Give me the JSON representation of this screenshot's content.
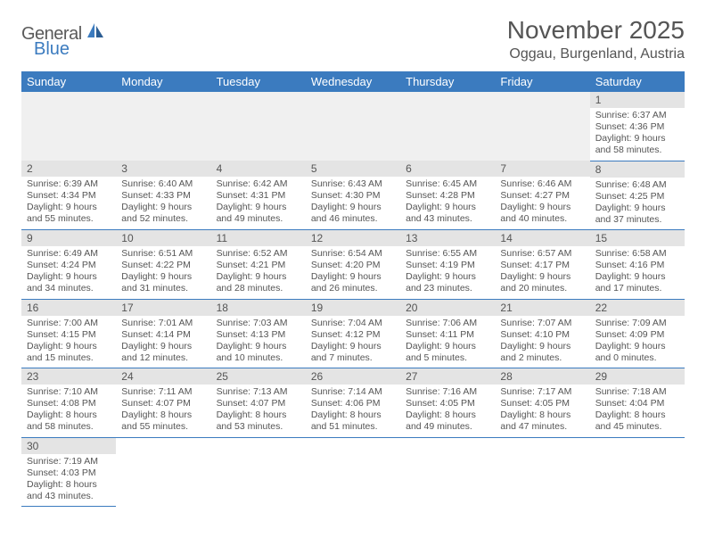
{
  "logo": {
    "text1": "General",
    "text2": "Blue"
  },
  "title": "November 2025",
  "location": "Oggau, Burgenland, Austria",
  "colors": {
    "header_bg": "#3b7bbf",
    "header_text": "#ffffff",
    "daynum_bg": "#e4e4e4",
    "text": "#555555",
    "row_divider": "#3b7bbf",
    "page_bg": "#ffffff"
  },
  "typography": {
    "title_fontsize": 28,
    "location_fontsize": 16,
    "weekday_fontsize": 13,
    "daynum_fontsize": 12,
    "info_fontsize": 10.5
  },
  "weekdays": [
    "Sunday",
    "Monday",
    "Tuesday",
    "Wednesday",
    "Thursday",
    "Friday",
    "Saturday"
  ],
  "grid": [
    [
      null,
      null,
      null,
      null,
      null,
      null,
      {
        "n": "1",
        "sunrise": "Sunrise: 6:37 AM",
        "sunset": "Sunset: 4:36 PM",
        "day1": "Daylight: 9 hours",
        "day2": "and 58 minutes."
      }
    ],
    [
      {
        "n": "2",
        "sunrise": "Sunrise: 6:39 AM",
        "sunset": "Sunset: 4:34 PM",
        "day1": "Daylight: 9 hours",
        "day2": "and 55 minutes."
      },
      {
        "n": "3",
        "sunrise": "Sunrise: 6:40 AM",
        "sunset": "Sunset: 4:33 PM",
        "day1": "Daylight: 9 hours",
        "day2": "and 52 minutes."
      },
      {
        "n": "4",
        "sunrise": "Sunrise: 6:42 AM",
        "sunset": "Sunset: 4:31 PM",
        "day1": "Daylight: 9 hours",
        "day2": "and 49 minutes."
      },
      {
        "n": "5",
        "sunrise": "Sunrise: 6:43 AM",
        "sunset": "Sunset: 4:30 PM",
        "day1": "Daylight: 9 hours",
        "day2": "and 46 minutes."
      },
      {
        "n": "6",
        "sunrise": "Sunrise: 6:45 AM",
        "sunset": "Sunset: 4:28 PM",
        "day1": "Daylight: 9 hours",
        "day2": "and 43 minutes."
      },
      {
        "n": "7",
        "sunrise": "Sunrise: 6:46 AM",
        "sunset": "Sunset: 4:27 PM",
        "day1": "Daylight: 9 hours",
        "day2": "and 40 minutes."
      },
      {
        "n": "8",
        "sunrise": "Sunrise: 6:48 AM",
        "sunset": "Sunset: 4:25 PM",
        "day1": "Daylight: 9 hours",
        "day2": "and 37 minutes."
      }
    ],
    [
      {
        "n": "9",
        "sunrise": "Sunrise: 6:49 AM",
        "sunset": "Sunset: 4:24 PM",
        "day1": "Daylight: 9 hours",
        "day2": "and 34 minutes."
      },
      {
        "n": "10",
        "sunrise": "Sunrise: 6:51 AM",
        "sunset": "Sunset: 4:22 PM",
        "day1": "Daylight: 9 hours",
        "day2": "and 31 minutes."
      },
      {
        "n": "11",
        "sunrise": "Sunrise: 6:52 AM",
        "sunset": "Sunset: 4:21 PM",
        "day1": "Daylight: 9 hours",
        "day2": "and 28 minutes."
      },
      {
        "n": "12",
        "sunrise": "Sunrise: 6:54 AM",
        "sunset": "Sunset: 4:20 PM",
        "day1": "Daylight: 9 hours",
        "day2": "and 26 minutes."
      },
      {
        "n": "13",
        "sunrise": "Sunrise: 6:55 AM",
        "sunset": "Sunset: 4:19 PM",
        "day1": "Daylight: 9 hours",
        "day2": "and 23 minutes."
      },
      {
        "n": "14",
        "sunrise": "Sunrise: 6:57 AM",
        "sunset": "Sunset: 4:17 PM",
        "day1": "Daylight: 9 hours",
        "day2": "and 20 minutes."
      },
      {
        "n": "15",
        "sunrise": "Sunrise: 6:58 AM",
        "sunset": "Sunset: 4:16 PM",
        "day1": "Daylight: 9 hours",
        "day2": "and 17 minutes."
      }
    ],
    [
      {
        "n": "16",
        "sunrise": "Sunrise: 7:00 AM",
        "sunset": "Sunset: 4:15 PM",
        "day1": "Daylight: 9 hours",
        "day2": "and 15 minutes."
      },
      {
        "n": "17",
        "sunrise": "Sunrise: 7:01 AM",
        "sunset": "Sunset: 4:14 PM",
        "day1": "Daylight: 9 hours",
        "day2": "and 12 minutes."
      },
      {
        "n": "18",
        "sunrise": "Sunrise: 7:03 AM",
        "sunset": "Sunset: 4:13 PM",
        "day1": "Daylight: 9 hours",
        "day2": "and 10 minutes."
      },
      {
        "n": "19",
        "sunrise": "Sunrise: 7:04 AM",
        "sunset": "Sunset: 4:12 PM",
        "day1": "Daylight: 9 hours",
        "day2": "and 7 minutes."
      },
      {
        "n": "20",
        "sunrise": "Sunrise: 7:06 AM",
        "sunset": "Sunset: 4:11 PM",
        "day1": "Daylight: 9 hours",
        "day2": "and 5 minutes."
      },
      {
        "n": "21",
        "sunrise": "Sunrise: 7:07 AM",
        "sunset": "Sunset: 4:10 PM",
        "day1": "Daylight: 9 hours",
        "day2": "and 2 minutes."
      },
      {
        "n": "22",
        "sunrise": "Sunrise: 7:09 AM",
        "sunset": "Sunset: 4:09 PM",
        "day1": "Daylight: 9 hours",
        "day2": "and 0 minutes."
      }
    ],
    [
      {
        "n": "23",
        "sunrise": "Sunrise: 7:10 AM",
        "sunset": "Sunset: 4:08 PM",
        "day1": "Daylight: 8 hours",
        "day2": "and 58 minutes."
      },
      {
        "n": "24",
        "sunrise": "Sunrise: 7:11 AM",
        "sunset": "Sunset: 4:07 PM",
        "day1": "Daylight: 8 hours",
        "day2": "and 55 minutes."
      },
      {
        "n": "25",
        "sunrise": "Sunrise: 7:13 AM",
        "sunset": "Sunset: 4:07 PM",
        "day1": "Daylight: 8 hours",
        "day2": "and 53 minutes."
      },
      {
        "n": "26",
        "sunrise": "Sunrise: 7:14 AM",
        "sunset": "Sunset: 4:06 PM",
        "day1": "Daylight: 8 hours",
        "day2": "and 51 minutes."
      },
      {
        "n": "27",
        "sunrise": "Sunrise: 7:16 AM",
        "sunset": "Sunset: 4:05 PM",
        "day1": "Daylight: 8 hours",
        "day2": "and 49 minutes."
      },
      {
        "n": "28",
        "sunrise": "Sunrise: 7:17 AM",
        "sunset": "Sunset: 4:05 PM",
        "day1": "Daylight: 8 hours",
        "day2": "and 47 minutes."
      },
      {
        "n": "29",
        "sunrise": "Sunrise: 7:18 AM",
        "sunset": "Sunset: 4:04 PM",
        "day1": "Daylight: 8 hours",
        "day2": "and 45 minutes."
      }
    ],
    [
      {
        "n": "30",
        "sunrise": "Sunrise: 7:19 AM",
        "sunset": "Sunset: 4:03 PM",
        "day1": "Daylight: 8 hours",
        "day2": "and 43 minutes."
      },
      null,
      null,
      null,
      null,
      null,
      null
    ]
  ]
}
